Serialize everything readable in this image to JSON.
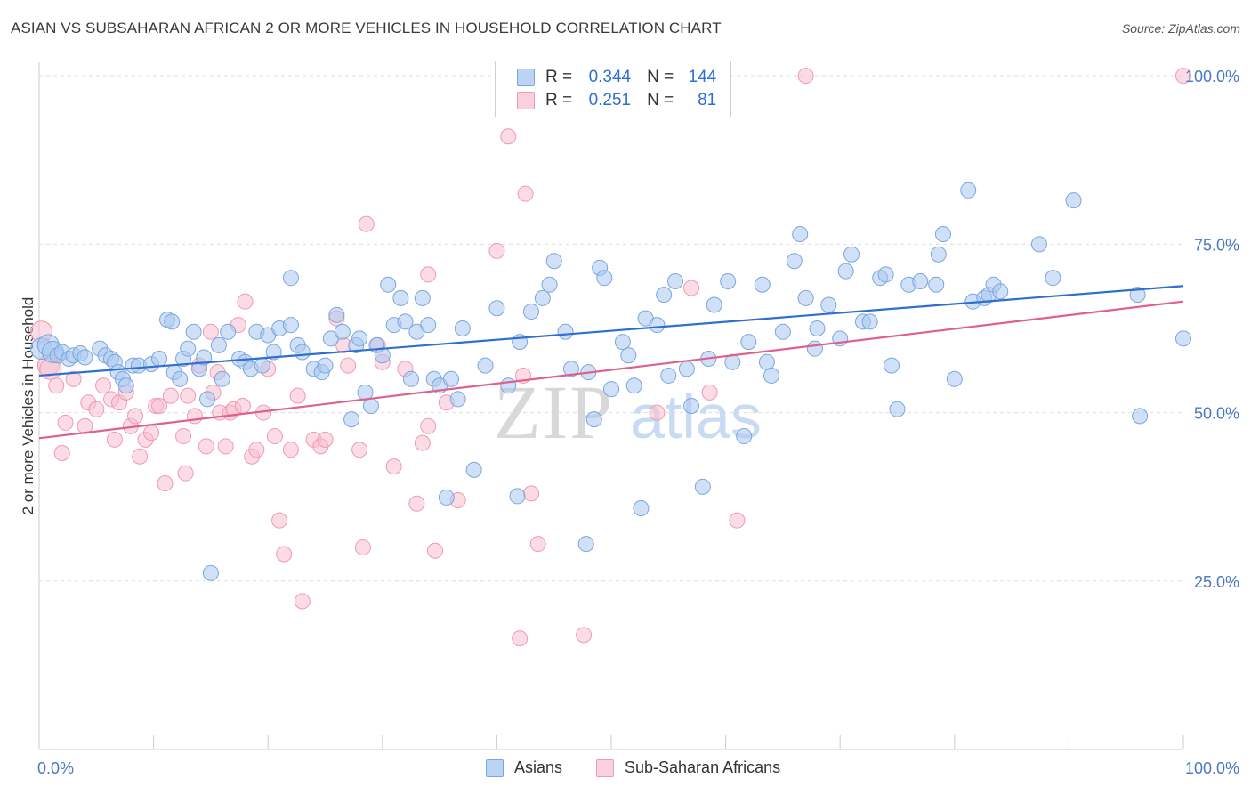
{
  "title": "ASIAN VS SUBSAHARAN AFRICAN 2 OR MORE VEHICLES IN HOUSEHOLD CORRELATION CHART",
  "source": "Source: ZipAtlas.com",
  "watermark": {
    "zip": "ZIP",
    "atlas": "atlas"
  },
  "legend": {
    "r_label": "R =",
    "n_label": "N =",
    "asians": {
      "r": "0.344",
      "n": "144"
    },
    "africans": {
      "r": "0.251",
      "n": "81"
    }
  },
  "colors": {
    "asian_fill": "#a9c8f0",
    "asian_stroke": "#7aa6de",
    "asian_line": "#2f6fd0",
    "african_fill": "#f7bfd0",
    "african_stroke": "#ee9ab4",
    "african_line": "#e0608c",
    "grid": "#dddddd",
    "tick_text": "#4a78c2"
  },
  "chart_data": {
    "type": "scatter",
    "title": "ASIAN VS SUBSAHARAN AFRICAN 2 OR MORE VEHICLES IN HOUSEHOLD CORRELATION CHART",
    "ylabel": "2 or more Vehicles in Household",
    "xlabel": "",
    "xlim": [
      0,
      100
    ],
    "ylim": [
      0,
      102
    ],
    "x_tick_labels": [
      "0.0%",
      "100.0%"
    ],
    "y_ticks": [
      25,
      50,
      75,
      100
    ],
    "y_tick_labels": [
      "25.0%",
      "50.0%",
      "75.0%",
      "100.0%"
    ],
    "grid": true,
    "legend_position": "bottom",
    "series": [
      {
        "name": "Asians",
        "trend": {
          "x": [
            0,
            100
          ],
          "y": [
            55.5,
            68.8
          ]
        },
        "points": [
          [
            0.2,
            59.5
          ],
          [
            0.8,
            60
          ],
          [
            1.2,
            59
          ],
          [
            1.6,
            58.5
          ],
          [
            2,
            59
          ],
          [
            2.6,
            58
          ],
          [
            3,
            58.5
          ],
          [
            3.6,
            58.8
          ],
          [
            4,
            58.2
          ],
          [
            5.3,
            59.5
          ],
          [
            5.8,
            58.5
          ],
          [
            6.3,
            58
          ],
          [
            6.6,
            57.5
          ],
          [
            6.9,
            56
          ],
          [
            7.3,
            55
          ],
          [
            7.6,
            54
          ],
          [
            8.2,
            57
          ],
          [
            8.7,
            57
          ],
          [
            9.8,
            57.2
          ],
          [
            10.5,
            58
          ],
          [
            11.2,
            63.8
          ],
          [
            11.6,
            63.5
          ],
          [
            11.8,
            56
          ],
          [
            12.3,
            55
          ],
          [
            12.6,
            58
          ],
          [
            13,
            59.5
          ],
          [
            13.5,
            62
          ],
          [
            14,
            56.5
          ],
          [
            14.4,
            58.2
          ],
          [
            14.7,
            52
          ],
          [
            15,
            26.2
          ],
          [
            15.7,
            60
          ],
          [
            16,
            55
          ],
          [
            16.5,
            62
          ],
          [
            17.5,
            58
          ],
          [
            18,
            57.5
          ],
          [
            18.5,
            56.5
          ],
          [
            19,
            62
          ],
          [
            19.5,
            57
          ],
          [
            20,
            61.5
          ],
          [
            20.5,
            59
          ],
          [
            21,
            62.5
          ],
          [
            22,
            63
          ],
          [
            22,
            70
          ],
          [
            22.6,
            60
          ],
          [
            23,
            59
          ],
          [
            24,
            56.5
          ],
          [
            24.7,
            56
          ],
          [
            25,
            57
          ],
          [
            25.5,
            61
          ],
          [
            26,
            64.5
          ],
          [
            26.5,
            62
          ],
          [
            27.3,
            49
          ],
          [
            27.7,
            60
          ],
          [
            28,
            61
          ],
          [
            28.5,
            53
          ],
          [
            29,
            51
          ],
          [
            29.5,
            60
          ],
          [
            30,
            58.5
          ],
          [
            30.5,
            69
          ],
          [
            31,
            63
          ],
          [
            31.6,
            67
          ],
          [
            32,
            63.5
          ],
          [
            32.5,
            55
          ],
          [
            33,
            62
          ],
          [
            33.5,
            67
          ],
          [
            34,
            63
          ],
          [
            34.5,
            55
          ],
          [
            35,
            54
          ],
          [
            35.6,
            37.4
          ],
          [
            36,
            55
          ],
          [
            36.6,
            52
          ],
          [
            37,
            62.5
          ],
          [
            38,
            41.5
          ],
          [
            39,
            57
          ],
          [
            40,
            65.5
          ],
          [
            41,
            54
          ],
          [
            41.8,
            37.6
          ],
          [
            42,
            60.5
          ],
          [
            43,
            65
          ],
          [
            44,
            67
          ],
          [
            44.6,
            69
          ],
          [
            45,
            72.5
          ],
          [
            46,
            62
          ],
          [
            46.5,
            56.5
          ],
          [
            47.8,
            30.5
          ],
          [
            48,
            56
          ],
          [
            48.5,
            49
          ],
          [
            49,
            71.5
          ],
          [
            49.4,
            70
          ],
          [
            50,
            53.5
          ],
          [
            51,
            60.5
          ],
          [
            51.5,
            58.5
          ],
          [
            52,
            54
          ],
          [
            52.6,
            35.8
          ],
          [
            53,
            64
          ],
          [
            54,
            63
          ],
          [
            54.6,
            67.5
          ],
          [
            55,
            55.5
          ],
          [
            55.6,
            69.5
          ],
          [
            56.6,
            56.5
          ],
          [
            57,
            51
          ],
          [
            58,
            39
          ],
          [
            58.5,
            58
          ],
          [
            59,
            66
          ],
          [
            60.2,
            69.5
          ],
          [
            60.6,
            57.5
          ],
          [
            61.6,
            46.5
          ],
          [
            62,
            60.5
          ],
          [
            63.2,
            69
          ],
          [
            63.6,
            57.5
          ],
          [
            64,
            55.5
          ],
          [
            65,
            62
          ],
          [
            66,
            72.5
          ],
          [
            66.5,
            76.5
          ],
          [
            67,
            67
          ],
          [
            67.8,
            59.5
          ],
          [
            68,
            62.5
          ],
          [
            69,
            66
          ],
          [
            70,
            61
          ],
          [
            70.5,
            71
          ],
          [
            71,
            73.5
          ],
          [
            72,
            63.5
          ],
          [
            72.6,
            63.5
          ],
          [
            73.5,
            70
          ],
          [
            74,
            70.5
          ],
          [
            74.5,
            57
          ],
          [
            75,
            50.5
          ],
          [
            76,
            69
          ],
          [
            77,
            69.5
          ],
          [
            78.4,
            69
          ],
          [
            78.6,
            73.5
          ],
          [
            79,
            76.5
          ],
          [
            80,
            55
          ],
          [
            81.2,
            83
          ],
          [
            81.6,
            66.5
          ],
          [
            82.6,
            67
          ],
          [
            83,
            67.5
          ],
          [
            83.4,
            69
          ],
          [
            84,
            68
          ],
          [
            87.4,
            75
          ],
          [
            88.6,
            70
          ],
          [
            90.4,
            81.5
          ],
          [
            96,
            67.5
          ],
          [
            96.2,
            49.5
          ],
          [
            100,
            61
          ]
        ]
      },
      {
        "name": "Sub-Saharan Africans",
        "trend": {
          "x": [
            0,
            100
          ],
          "y": [
            46.2,
            66.5
          ]
        },
        "points": [
          [
            0.2,
            62
          ],
          [
            0.8,
            57
          ],
          [
            1,
            56.5
          ],
          [
            1.5,
            54
          ],
          [
            2,
            44
          ],
          [
            2.3,
            48.5
          ],
          [
            3,
            55
          ],
          [
            4,
            48
          ],
          [
            4.3,
            51.5
          ],
          [
            5,
            50.5
          ],
          [
            5.6,
            54
          ],
          [
            6.3,
            52
          ],
          [
            6.6,
            46
          ],
          [
            7,
            51.5
          ],
          [
            7.6,
            53
          ],
          [
            8,
            48
          ],
          [
            8.4,
            49.5
          ],
          [
            8.8,
            43.5
          ],
          [
            9.3,
            46
          ],
          [
            9.8,
            47
          ],
          [
            10.2,
            51
          ],
          [
            10.5,
            51
          ],
          [
            11,
            39.5
          ],
          [
            11.5,
            52.5
          ],
          [
            12.6,
            46.5
          ],
          [
            12.8,
            41
          ],
          [
            13,
            52.5
          ],
          [
            13.6,
            49.5
          ],
          [
            14,
            57
          ],
          [
            14.6,
            45
          ],
          [
            15,
            62
          ],
          [
            15.2,
            53
          ],
          [
            15.6,
            56
          ],
          [
            15.8,
            50
          ],
          [
            16.3,
            45
          ],
          [
            16.7,
            50
          ],
          [
            17,
            50.5
          ],
          [
            17.4,
            63
          ],
          [
            17.8,
            51
          ],
          [
            18,
            66.5
          ],
          [
            18.6,
            43.5
          ],
          [
            19,
            44.5
          ],
          [
            19.6,
            50
          ],
          [
            20,
            56.5
          ],
          [
            20.6,
            46.5
          ],
          [
            21,
            34
          ],
          [
            21.4,
            29
          ],
          [
            22,
            44.5
          ],
          [
            22.6,
            52.5
          ],
          [
            23,
            22
          ],
          [
            24,
            46
          ],
          [
            24.6,
            45
          ],
          [
            25,
            46
          ],
          [
            26,
            64
          ],
          [
            26.6,
            60
          ],
          [
            27,
            57
          ],
          [
            28,
            44.5
          ],
          [
            28.3,
            30
          ],
          [
            28.6,
            78
          ],
          [
            29.6,
            60
          ],
          [
            30,
            57.5
          ],
          [
            31,
            42
          ],
          [
            32,
            56.5
          ],
          [
            33,
            36.5
          ],
          [
            33.5,
            45.5
          ],
          [
            34,
            48
          ],
          [
            34,
            70.5
          ],
          [
            34.6,
            29.5
          ],
          [
            35.6,
            51.5
          ],
          [
            36.6,
            37
          ],
          [
            40,
            74
          ],
          [
            41,
            91
          ],
          [
            42,
            16.5
          ],
          [
            42.3,
            55.5
          ],
          [
            42.5,
            82.5
          ],
          [
            43,
            38
          ],
          [
            43.6,
            30.5
          ],
          [
            47.6,
            17
          ],
          [
            54,
            50
          ],
          [
            57,
            68.5
          ],
          [
            58.6,
            53
          ],
          [
            61,
            34
          ],
          [
            67,
            100
          ],
          [
            100,
            100
          ]
        ]
      }
    ]
  }
}
